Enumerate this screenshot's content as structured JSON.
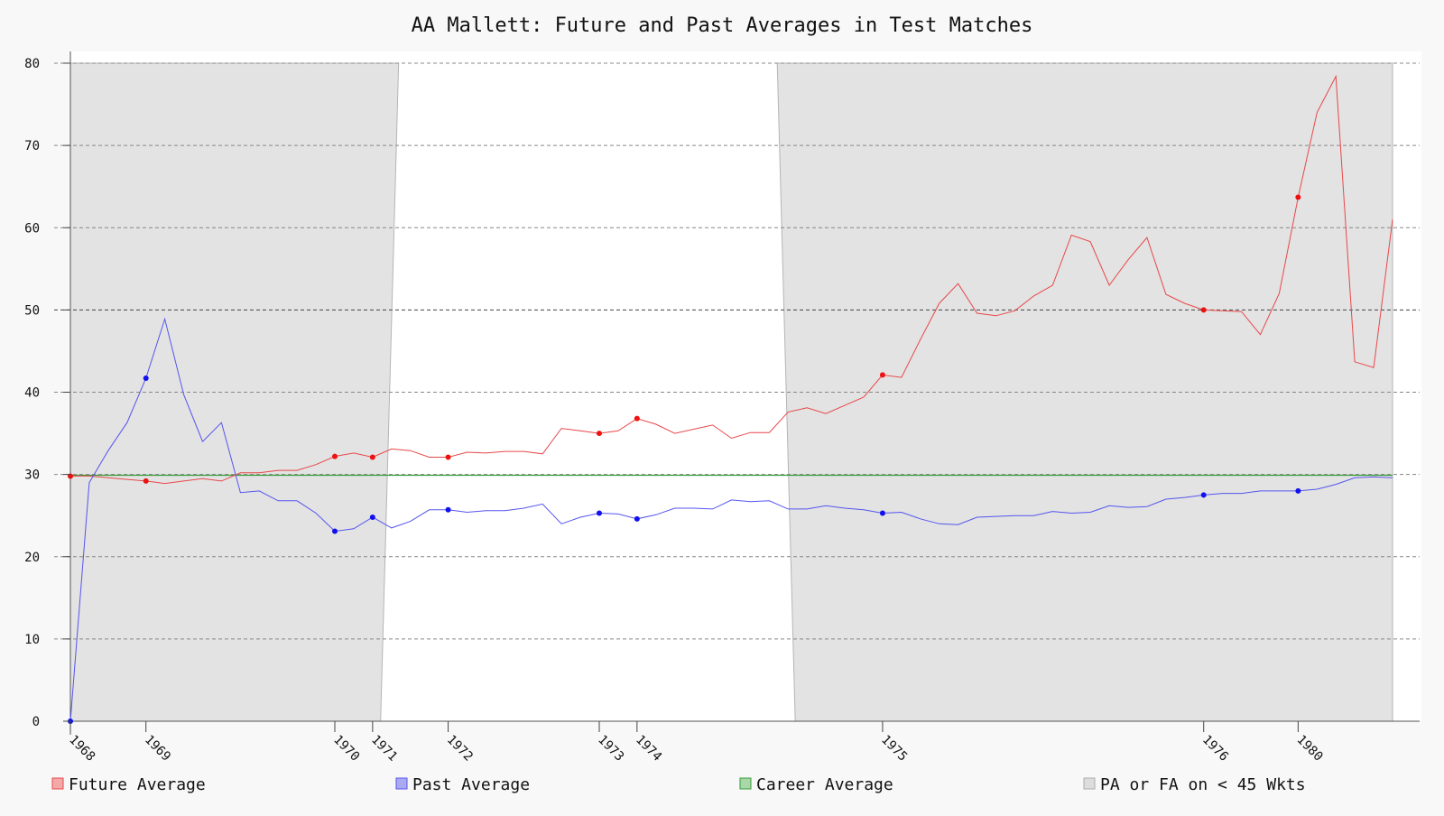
{
  "chart_data": {
    "type": "line",
    "title": "AA Mallett: Future and Past Averages in Test Matches",
    "xlabel": "",
    "ylabel": "",
    "ylim": [
      0,
      80
    ],
    "yticks": [
      0,
      10,
      20,
      30,
      40,
      50,
      60,
      70,
      80
    ],
    "grid": true,
    "legend_position": "bottom",
    "match_count": 71,
    "x_tick_labels": [
      {
        "match": 1,
        "label": "1968"
      },
      {
        "match": 5,
        "label": "1969"
      },
      {
        "match": 15,
        "label": "1970"
      },
      {
        "match": 17,
        "label": "1971"
      },
      {
        "match": 21,
        "label": "1972"
      },
      {
        "match": 29,
        "label": "1973"
      },
      {
        "match": 31,
        "label": "1974"
      },
      {
        "match": 44,
        "label": "1975"
      },
      {
        "match": 61,
        "label": "1976"
      },
      {
        "match": 66,
        "label": "1980"
      }
    ],
    "marker_matches": [
      1,
      5,
      15,
      17,
      21,
      29,
      31,
      44,
      61,
      66
    ],
    "series": [
      {
        "name": "Future Average",
        "color": "#e8474a",
        "values": [
          29.8,
          29.8,
          29.6,
          29.4,
          29.2,
          28.9,
          29.2,
          29.5,
          29.2,
          30.2,
          30.2,
          30.5,
          30.5,
          31.2,
          32.2,
          32.6,
          32.1,
          33.1,
          32.9,
          32.1,
          32.1,
          32.7,
          32.6,
          32.8,
          32.8,
          32.5,
          35.6,
          35.3,
          35.0,
          35.3,
          36.8,
          36.1,
          35.0,
          35.5,
          36.0,
          34.4,
          35.1,
          35.1,
          37.6,
          38.1,
          37.4,
          38.4,
          39.4,
          42.1,
          41.8,
          46.4,
          50.8,
          53.2,
          49.6,
          49.3,
          49.9,
          51.7,
          53.0,
          59.1,
          58.3,
          53.0,
          56.1,
          58.8,
          51.9,
          50.8,
          50.0,
          49.9,
          49.8,
          47.0,
          52.0,
          63.7,
          74.0,
          78.4,
          43.7,
          43.0,
          61.0
        ]
      },
      {
        "name": "Past Average",
        "color": "#5555ee",
        "values": [
          0.0,
          29.0,
          32.9,
          36.3,
          41.7,
          48.9,
          39.7,
          34.0,
          36.3,
          27.8,
          28.0,
          26.8,
          26.8,
          25.3,
          23.1,
          23.4,
          24.8,
          23.5,
          24.3,
          25.7,
          25.7,
          25.4,
          25.6,
          25.6,
          25.9,
          26.4,
          24.0,
          24.8,
          25.3,
          25.2,
          24.6,
          25.1,
          25.9,
          25.9,
          25.8,
          26.9,
          26.7,
          26.8,
          25.8,
          25.8,
          26.2,
          25.9,
          25.7,
          25.3,
          25.4,
          24.6,
          24.0,
          23.9,
          24.8,
          24.9,
          25.0,
          25.0,
          25.5,
          25.3,
          25.4,
          26.2,
          26.0,
          26.1,
          27.0,
          27.2,
          27.5,
          27.7,
          27.7,
          28.0,
          28.0,
          28.0,
          28.2,
          28.8,
          29.6,
          29.7,
          29.6
        ]
      },
      {
        "name": "Career Average",
        "color": "#3a9a3a",
        "values": [
          29.9
        ]
      },
      {
        "name": "PA or FA on < 45 Wkts",
        "color": "#cfcfcf",
        "regions": [
          {
            "from_match": 1,
            "to_match": 17.9
          },
          {
            "from_match": 38.9,
            "to_match": 71
          }
        ]
      }
    ]
  }
}
